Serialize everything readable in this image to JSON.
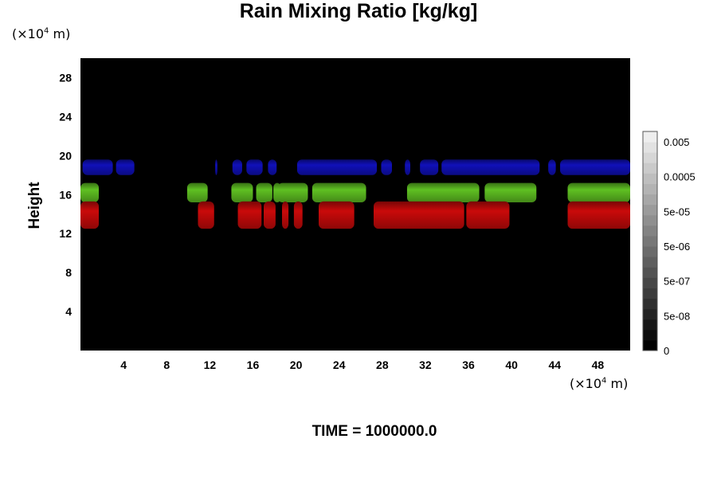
{
  "chart_data": {
    "type": "heatmap",
    "title": "Rain Mixing Ratio [kg/kg]",
    "xlabel": "",
    "ylabel": "Height",
    "x_unit": "(×10",
    "x_unit_exp": "4",
    "x_unit_tail": " m)",
    "y_unit": "(×10",
    "y_unit_exp": "4",
    "y_unit_tail": " m)",
    "xlim": [
      0,
      51
    ],
    "ylim": [
      0,
      30
    ],
    "x_ticks": [
      4,
      8,
      12,
      16,
      20,
      24,
      28,
      32,
      36,
      40,
      44,
      48
    ],
    "y_ticks": [
      4,
      8,
      12,
      16,
      20,
      24,
      28
    ],
    "grid": false,
    "background_color": "#000000",
    "colorbar": {
      "labels": [
        "0",
        "5e-08",
        "5e-07",
        "5e-06",
        "5e-05",
        "0.0005",
        "0.005"
      ],
      "min_color": "#000000",
      "max_color": "#eeeeee",
      "steps": 21
    },
    "bands": [
      {
        "name": "blue",
        "color": "#0d0d9a",
        "y_range": [
          18.0,
          19.6
        ],
        "segments": [
          [
            0.2,
            3.0
          ],
          [
            3.3,
            5.0
          ],
          [
            12.5,
            12.7
          ],
          [
            14.1,
            15.0
          ],
          [
            15.4,
            16.9
          ],
          [
            17.4,
            18.2
          ],
          [
            20.1,
            27.5
          ],
          [
            27.9,
            28.9
          ],
          [
            30.1,
            30.6
          ],
          [
            31.5,
            33.2
          ],
          [
            33.5,
            42.6
          ],
          [
            43.4,
            44.1
          ],
          [
            44.5,
            51.0
          ]
        ]
      },
      {
        "name": "green",
        "color": "#4fa01c",
        "y_range": [
          15.2,
          17.2
        ],
        "segments": [
          [
            0.0,
            1.7
          ],
          [
            9.9,
            11.8
          ],
          [
            14.0,
            16.0
          ],
          [
            16.3,
            17.8
          ],
          [
            17.9,
            18.6
          ],
          [
            18.3,
            21.1
          ],
          [
            21.5,
            26.5
          ],
          [
            30.3,
            37.0
          ],
          [
            37.5,
            42.3
          ],
          [
            45.2,
            51.0
          ]
        ]
      },
      {
        "name": "red",
        "color": "#a80808",
        "y_range": [
          12.5,
          15.3
        ],
        "segments": [
          [
            0.0,
            1.7
          ],
          [
            10.9,
            12.4
          ],
          [
            14.6,
            16.8
          ],
          [
            17.0,
            18.1
          ],
          [
            18.7,
            19.3
          ],
          [
            19.8,
            20.6
          ],
          [
            22.1,
            25.4
          ],
          [
            27.2,
            35.6
          ],
          [
            35.8,
            39.8
          ],
          [
            45.2,
            51.0
          ]
        ]
      }
    ]
  },
  "footer": {
    "time_label": "TIME = 1000000.0"
  }
}
